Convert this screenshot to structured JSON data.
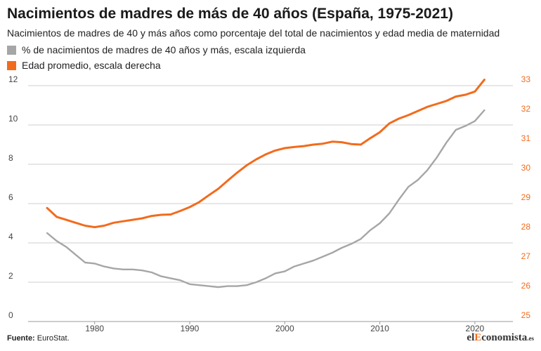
{
  "header": {
    "title": "Nacimientos de madres de más de 40 años (España, 1975-2021)",
    "subtitle": "Nacimientos de madres de 40 y más años como porcentaje del total de nacimientos y edad media de maternidad"
  },
  "legend": [
    {
      "label": "% de nacimientos de madres de 40 años y más, escala izquierda",
      "color": "#a6a6a6"
    },
    {
      "label": "Edad promedio, escala derecha",
      "color": "#f26b1d"
    }
  ],
  "footer": {
    "source_label": "Fuente:",
    "source_text": "EuroStat.",
    "brand_prefix": "el",
    "brand_accent": "E",
    "brand_rest": "conomista",
    "brand_suffix": ".es"
  },
  "chart_data": {
    "type": "line",
    "x_ticks": [
      1980,
      1990,
      2000,
      2010,
      2020
    ],
    "xlim": [
      1973,
      2024
    ],
    "y_left": {
      "ylim": [
        0,
        12
      ],
      "ticks": [
        0,
        2,
        4,
        6,
        8,
        10,
        12
      ],
      "color": "#444444"
    },
    "y_right": {
      "ylim": [
        25,
        33
      ],
      "ticks": [
        25,
        26,
        27,
        28,
        29,
        30,
        31,
        32,
        33
      ],
      "color": "#f26b1d"
    },
    "grid": true,
    "series": [
      {
        "name": "% de nacimientos de madres de 40 años y más, escala izquierda",
        "axis": "left",
        "color": "#a6a6a6",
        "x": [
          1975,
          1976,
          1977,
          1978,
          1979,
          1980,
          1981,
          1982,
          1983,
          1984,
          1985,
          1986,
          1987,
          1988,
          1989,
          1990,
          1991,
          1992,
          1993,
          1994,
          1995,
          1996,
          1997,
          1998,
          1999,
          2000,
          2001,
          2002,
          2003,
          2004,
          2005,
          2006,
          2007,
          2008,
          2009,
          2010,
          2011,
          2012,
          2013,
          2014,
          2015,
          2016,
          2017,
          2018,
          2019,
          2020,
          2021
        ],
        "values": [
          4.5,
          4.1,
          3.8,
          3.4,
          3.0,
          2.95,
          2.8,
          2.7,
          2.65,
          2.65,
          2.6,
          2.5,
          2.3,
          2.2,
          2.1,
          1.9,
          1.85,
          1.8,
          1.75,
          1.8,
          1.8,
          1.85,
          2.0,
          2.2,
          2.45,
          2.55,
          2.8,
          2.95,
          3.1,
          3.3,
          3.5,
          3.75,
          3.95,
          4.2,
          4.65,
          5.0,
          5.5,
          6.2,
          6.85,
          7.2,
          7.7,
          8.35,
          9.1,
          9.75,
          9.95,
          10.2,
          10.75
        ]
      },
      {
        "name": "Edad promedio, escala derecha",
        "axis": "right",
        "color": "#f26b1d",
        "x": [
          1975,
          1976,
          1977,
          1978,
          1979,
          1980,
          1981,
          1982,
          1983,
          1984,
          1985,
          1986,
          1987,
          1988,
          1989,
          1990,
          1991,
          1992,
          1993,
          1994,
          1995,
          1996,
          1997,
          1998,
          1999,
          2000,
          2001,
          2002,
          2003,
          2004,
          2005,
          2006,
          2007,
          2008,
          2009,
          2010,
          2011,
          2012,
          2013,
          2014,
          2015,
          2016,
          2017,
          2018,
          2019,
          2020,
          2021
        ],
        "values": [
          28.85,
          28.55,
          28.45,
          28.35,
          28.25,
          28.2,
          28.25,
          28.35,
          28.4,
          28.45,
          28.5,
          28.58,
          28.62,
          28.63,
          28.75,
          28.88,
          29.05,
          29.28,
          29.5,
          29.78,
          30.05,
          30.3,
          30.5,
          30.67,
          30.8,
          30.88,
          30.92,
          30.95,
          31.0,
          31.03,
          31.1,
          31.08,
          31.02,
          31.0,
          31.22,
          31.42,
          31.72,
          31.88,
          32.0,
          32.14,
          32.28,
          32.38,
          32.48,
          32.63,
          32.69,
          32.8,
          33.2
        ]
      }
    ]
  }
}
